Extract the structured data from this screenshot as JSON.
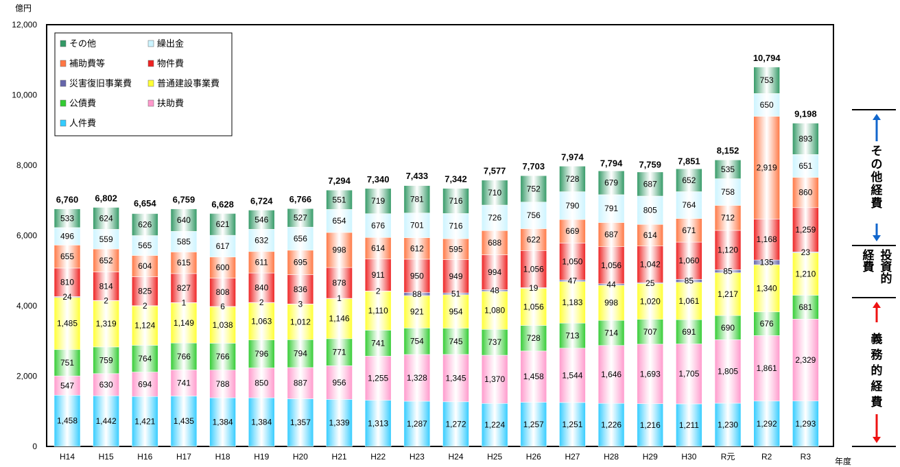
{
  "chart_data": {
    "type": "bar",
    "stacked": true,
    "y_unit": "億円",
    "x_unit": "年度",
    "ylim": [
      0,
      12000
    ],
    "yticks": [
      "0",
      "2,000",
      "4,000",
      "6,000",
      "8,000",
      "10,000",
      "12,000"
    ],
    "ytick_values": [
      0,
      2000,
      4000,
      6000,
      8000,
      10000,
      12000
    ],
    "categories": [
      "H14",
      "H15",
      "H16",
      "H17",
      "H18",
      "H19",
      "H20",
      "H21",
      "H22",
      "H23",
      "H24",
      "H25",
      "H26",
      "H27",
      "H28",
      "H29",
      "H30",
      "R元",
      "R2",
      "R3"
    ],
    "totals": [
      6760,
      6802,
      6654,
      6759,
      6628,
      6724,
      6766,
      7294,
      7340,
      7433,
      7342,
      7577,
      7703,
      7974,
      7794,
      7759,
      7851,
      8152,
      10794,
      9198
    ],
    "total_labels": [
      "6,760",
      "6,802",
      "6,654",
      "6,759",
      "6,628",
      "6,724",
      "6,766",
      "7,294",
      "7,340",
      "7,433",
      "7,342",
      "7,577",
      "7,703",
      "7,974",
      "7,794",
      "7,759",
      "7,851",
      "8,152",
      "10,794",
      "9,198"
    ],
    "series": [
      {
        "name": "人件費",
        "color": "#33ccff",
        "values": [
          1458,
          1442,
          1421,
          1435,
          1384,
          1384,
          1357,
          1339,
          1313,
          1287,
          1272,
          1224,
          1257,
          1251,
          1226,
          1216,
          1211,
          1230,
          1292,
          1293
        ],
        "labels": [
          "1,458",
          "1,442",
          "1,421",
          "1,435",
          "1,384",
          "1,384",
          "1,357",
          "1,339",
          "1,313",
          "1,287",
          "1,272",
          "1,224",
          "1,257",
          "1,251",
          "1,226",
          "1,216",
          "1,211",
          "1,230",
          "1,292",
          "1,293"
        ]
      },
      {
        "name": "扶助費",
        "color": "#ff99cc",
        "values": [
          547,
          630,
          694,
          741,
          788,
          850,
          887,
          956,
          1255,
          1328,
          1345,
          1370,
          1458,
          1544,
          1646,
          1693,
          1705,
          1805,
          1861,
          2329
        ],
        "labels": [
          "547",
          "630",
          "694",
          "741",
          "788",
          "850",
          "887",
          "956",
          "1,255",
          "1,328",
          "1,345",
          "1,370",
          "1,458",
          "1,544",
          "1,646",
          "1,693",
          "1,705",
          "1,805",
          "1,861",
          "2,329"
        ]
      },
      {
        "name": "公債費",
        "color": "#33cc33",
        "values": [
          751,
          759,
          764,
          766,
          766,
          796,
          794,
          771,
          741,
          754,
          745,
          737,
          728,
          713,
          714,
          707,
          691,
          690,
          676,
          681
        ],
        "labels": [
          "751",
          "759",
          "764",
          "766",
          "766",
          "796",
          "794",
          "771",
          "741",
          "754",
          "745",
          "737",
          "728",
          "713",
          "714",
          "707",
          "691",
          "690",
          "676",
          "681"
        ]
      },
      {
        "name": "普通建設事業費",
        "color": "#ffff33",
        "values": [
          1485,
          1319,
          1124,
          1149,
          1038,
          1063,
          1012,
          1146,
          1110,
          921,
          954,
          1080,
          1056,
          1183,
          998,
          1020,
          1061,
          1217,
          1340,
          1210
        ],
        "labels": [
          "1,485",
          "1,319",
          "1,124",
          "1,149",
          "1,038",
          "1,063",
          "1,012",
          "1,146",
          "1,110",
          "921",
          "954",
          "1,080",
          "1,056",
          "1,183",
          "998",
          "1,020",
          "1,061",
          "1,217",
          "1,340",
          "1,210"
        ]
      },
      {
        "name": "災害復旧事業費",
        "color": "#6666aa",
        "values": [
          24,
          2,
          2,
          1,
          6,
          2,
          3,
          1,
          2,
          88,
          51,
          48,
          19,
          47,
          44,
          25,
          85,
          85,
          135,
          23
        ],
        "labels": [
          "24",
          "2",
          "2",
          "1",
          "6",
          "2",
          "3",
          "1",
          "2",
          "88",
          "51",
          "48",
          "19",
          "47",
          "44",
          "25",
          "85",
          "85",
          "135",
          "23"
        ]
      },
      {
        "name": "物件費",
        "color": "#ee2222",
        "values": [
          810,
          814,
          825,
          827,
          808,
          840,
          836,
          878,
          911,
          950,
          949,
          994,
          1056,
          1050,
          1056,
          1042,
          1060,
          1120,
          1168,
          1259
        ],
        "labels": [
          "810",
          "814",
          "825",
          "827",
          "808",
          "840",
          "836",
          "878",
          "911",
          "950",
          "949",
          "994",
          "1,056",
          "1,050",
          "1,056",
          "1,042",
          "1,060",
          "1,120",
          "1,168",
          "1,259"
        ]
      },
      {
        "name": "補助費等",
        "color": "#ff7744",
        "values": [
          655,
          652,
          604,
          615,
          600,
          611,
          695,
          998,
          614,
          612,
          595,
          688,
          622,
          669,
          687,
          614,
          671,
          712,
          2919,
          860
        ],
        "labels": [
          "655",
          "652",
          "604",
          "615",
          "600",
          "611",
          "695",
          "998",
          "614",
          "612",
          "595",
          "688",
          "622",
          "669",
          "687",
          "614",
          "671",
          "712",
          "2,919",
          "860"
        ]
      },
      {
        "name": "繰出金",
        "color": "#ccf4ff",
        "values": [
          496,
          559,
          565,
          585,
          617,
          632,
          656,
          654,
          676,
          701,
          716,
          726,
          756,
          790,
          791,
          805,
          764,
          758,
          650,
          651
        ],
        "labels": [
          "496",
          "559",
          "565",
          "585",
          "617",
          "632",
          "656",
          "654",
          "676",
          "701",
          "716",
          "726",
          "756",
          "790",
          "791",
          "805",
          "764",
          "758",
          "650",
          "651"
        ]
      },
      {
        "name": "その他",
        "color": "#339966",
        "values": [
          533,
          624,
          626,
          640,
          621,
          546,
          527,
          551,
          719,
          781,
          716,
          710,
          752,
          728,
          679,
          687,
          652,
          535,
          753,
          893
        ],
        "labels": [
          "533",
          "624",
          "626",
          "640",
          "621",
          "546",
          "527",
          "551",
          "719",
          "781",
          "716",
          "710",
          "752",
          "728",
          "679",
          "687",
          "652",
          "535",
          "753",
          "893"
        ]
      }
    ],
    "legend_order": [
      "その他",
      "繰出金",
      "補助費等",
      "物件費",
      "災害復旧事業費",
      "普通建設事業費",
      "公債費",
      "扶助費",
      "人件費"
    ],
    "legend_position": "top-left",
    "grid": false,
    "groups": [
      {
        "label": "その他経費",
        "arrow_color": "#1166cc"
      },
      {
        "label_line1": "投資的",
        "label_line2": "経費",
        "arrow_color": "#1166cc"
      },
      {
        "label": "義務的経費",
        "arrow_color": "#ee1111"
      }
    ]
  }
}
